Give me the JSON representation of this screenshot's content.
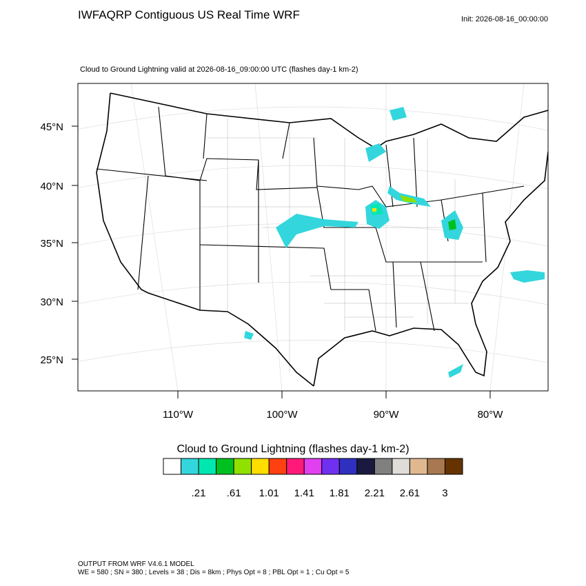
{
  "header": {
    "title": "IWFAQRP Contiguous US Real Time WRF",
    "init": "Init: 2026-08-16_00:00:00"
  },
  "map": {
    "subtitle": "Cloud to Ground Lightning valid at 2026-08-16_09:00:00 UTC   (flashes day-1 km-2)",
    "lat_labels": [
      "45°N",
      "40°N",
      "35°N",
      "30°N",
      "25°N"
    ],
    "lon_labels": [
      "110°W",
      "100°W",
      "90°W",
      "80°W"
    ]
  },
  "colorbar": {
    "title": "Cloud to Ground Lightning  (flashes day-1 km-2)",
    "colors": [
      "#ffffff",
      "#33d6dd",
      "#00e8b0",
      "#00c020",
      "#90e000",
      "#ffdd00",
      "#ff4010",
      "#ff1a7a",
      "#e040f0",
      "#7030f0",
      "#3030c0",
      "#1a1a40",
      "#808080",
      "#e0ddd8",
      "#e0b890",
      "#a87850",
      "#663300"
    ],
    "labels": [
      ".21",
      ".61",
      "1.01",
      "1.41",
      "1.81",
      "2.21",
      "2.61",
      "3"
    ]
  },
  "footer": {
    "lines": [
      "OUTPUT FROM WRF V4.6.1 MODEL",
      "WE = 580 ; SN = 380 ; Levels = 38 ; Dis = 8km ; Phys Opt = 8 ; PBL Opt = 1 ; Cu Opt = 5"
    ]
  }
}
